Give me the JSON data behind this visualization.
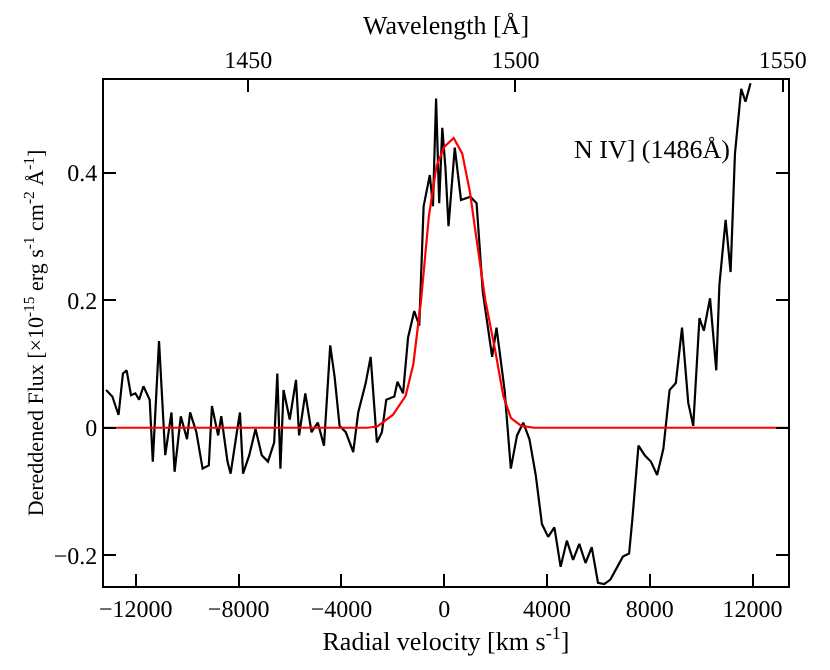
{
  "chart_data": {
    "type": "line",
    "xlabel": "Radial velocity [km s$^{-1}$]",
    "ylabel": "Dereddened Flux [×10$^{-15}$ erg s$^{-1}$ cm$^{-2}$ Å$^{-1}$]",
    "x2label": "Wavelength [Å]",
    "xlim": [
      -13240,
      13380
    ],
    "xticks": [
      -12000,
      -8000,
      -4000,
      0,
      4000,
      8000,
      12000
    ],
    "x2lim": [
      1423,
      1551
    ],
    "x2ticks": [
      1450,
      1500,
      1550
    ],
    "ylim": [
      -0.248,
      0.545
    ],
    "yticks": [
      -0.2,
      0,
      0.2,
      0.4
    ],
    "marker": "none",
    "annotations": [
      "N IV] (1486Å)"
    ],
    "series": [
      {
        "color": "#000000",
        "x": [
          -13159,
          -12916,
          -12674,
          -12504,
          -12359,
          -12189,
          -12020,
          -11874,
          -11705,
          -11462,
          -11341,
          -11099,
          -10857,
          -10614,
          -10493,
          -10251,
          -10009,
          -9888,
          -9645,
          -9403,
          -9161,
          -9039,
          -8797,
          -8676,
          -8434,
          -8312,
          -8070,
          -7949,
          -7828,
          -7586,
          -7343,
          -7101,
          -6859,
          -6617,
          -6495,
          -6374,
          -6253,
          -6011,
          -5768,
          -5647,
          -5405,
          -5163,
          -4920,
          -4678,
          -4436,
          -4266,
          -4072,
          -3830,
          -3539,
          -3346,
          -3055,
          -2862,
          -2619,
          -2425,
          -2255,
          -1940,
          -1819,
          -1601,
          -1407,
          -1165,
          -971,
          -801,
          -559,
          -438,
          -316,
          -195,
          -74,
          47,
          168,
          412,
          654,
          1018,
          1260,
          1502,
          1866,
          2035,
          2350,
          2593,
          2835,
          3077,
          3319,
          3562,
          3804,
          4046,
          4289,
          4531,
          4773,
          5016,
          5258,
          5500,
          5742,
          5985,
          6227,
          6469,
          6954,
          7196,
          7317,
          7560,
          7802,
          8044,
          8287,
          8529,
          8771,
          9014,
          9256,
          9498,
          9692,
          9934,
          10104,
          10346,
          10588,
          10710,
          10952,
          11146,
          11315,
          11558,
          11727,
          11921
        ],
        "values": [
          0.059,
          0.049,
          0.02,
          0.085,
          0.09,
          0.051,
          0.054,
          0.044,
          0.065,
          0.044,
          -0.053,
          0.136,
          -0.043,
          0.024,
          -0.069,
          0.018,
          -0.018,
          0.024,
          -0.007,
          -0.064,
          -0.059,
          0.034,
          -0.012,
          0.018,
          -0.053,
          -0.072,
          -0.007,
          0.024,
          -0.072,
          -0.043,
          -0.002,
          -0.043,
          -0.053,
          -0.023,
          0.085,
          -0.064,
          0.059,
          0.013,
          0.075,
          -0.012,
          0.054,
          -0.007,
          0.008,
          -0.028,
          0.129,
          0.08,
          0.003,
          -0.007,
          -0.038,
          0.024,
          0.07,
          0.111,
          -0.023,
          -0.007,
          0.044,
          0.049,
          0.072,
          0.054,
          0.141,
          0.183,
          0.16,
          0.347,
          0.396,
          0.347,
          0.516,
          0.352,
          0.47,
          0.408,
          0.316,
          0.439,
          0.357,
          0.362,
          0.352,
          0.213,
          0.111,
          0.157,
          0.059,
          -0.064,
          -0.012,
          0.008,
          -0.018,
          -0.074,
          -0.151,
          -0.171,
          -0.156,
          -0.218,
          -0.177,
          -0.207,
          -0.182,
          -0.212,
          -0.187,
          -0.243,
          -0.245,
          -0.238,
          -0.202,
          -0.197,
          -0.146,
          -0.028,
          -0.043,
          -0.053,
          -0.074,
          -0.033,
          0.059,
          0.07,
          0.157,
          0.039,
          0.003,
          0.172,
          0.152,
          0.203,
          0.09,
          0.224,
          0.326,
          0.244,
          0.429,
          0.531,
          0.511,
          0.54
        ]
      },
      {
        "color": "#ff0000",
        "x": [
          -13240,
          -3000,
          -2600,
          -2000,
          -1500,
          -1200,
          -900,
          -600,
          -300,
          0,
          370,
          700,
          1000,
          1260,
          1600,
          1990,
          2300,
          2600,
          3000,
          3500,
          13380
        ],
        "values": [
          0,
          0,
          0.002,
          0.02,
          0.05,
          0.1,
          0.2,
          0.33,
          0.41,
          0.44,
          0.454,
          0.43,
          0.37,
          0.295,
          0.2,
          0.12,
          0.05,
          0.015,
          0.003,
          0,
          0
        ]
      }
    ]
  }
}
